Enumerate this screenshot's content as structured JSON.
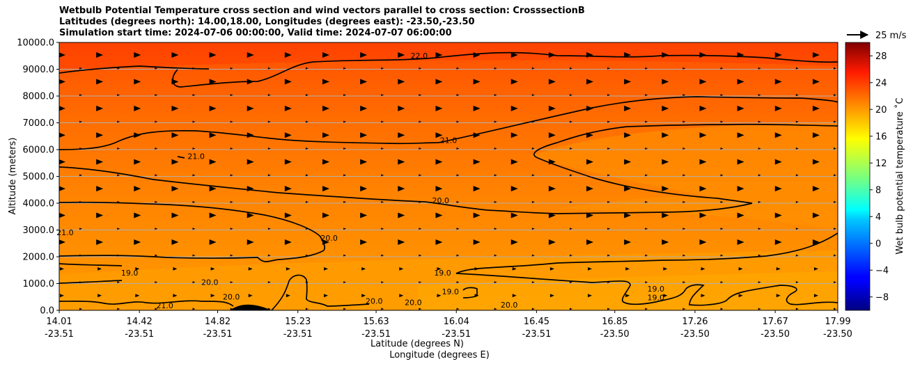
{
  "chart_data": {
    "type": "heatmap",
    "title_lines": [
      "Wetbulb Potential Temperature cross section and wind vectors parallel to cross section: CrosssectionB",
      "Latitudes (degrees north): 14.00,18.00, Longitudes (degrees east): -23.50,-23.50",
      "Simulation start time: 2024-07-06 00:00:00, Valid time: 2024-07-07 06:00:00"
    ],
    "ylabel": "Altitude (meters)",
    "xlabel_lat": "Latitude (degrees N)",
    "xlabel_lon": "Longitude (degrees E)",
    "ylim": [
      0,
      10000
    ],
    "y_ticks": [
      "0.0",
      "1000.0",
      "2000.0",
      "3000.0",
      "4000.0",
      "5000.0",
      "6000.0",
      "7000.0",
      "8000.0",
      "9000.0",
      "10000.0"
    ],
    "y_tick_values": [
      0,
      1000,
      2000,
      3000,
      4000,
      5000,
      6000,
      7000,
      8000,
      9000,
      10000
    ],
    "xlim": [
      14.01,
      17.99
    ],
    "x_ticks": [
      {
        "lat": "14.01",
        "lon": "-23.51",
        "v": 14.01
      },
      {
        "lat": "14.42",
        "lon": "-23.51",
        "v": 14.42
      },
      {
        "lat": "14.82",
        "lon": "-23.51",
        "v": 14.82
      },
      {
        "lat": "15.23",
        "lon": "-23.51",
        "v": 15.23
      },
      {
        "lat": "15.63",
        "lon": "-23.51",
        "v": 15.63
      },
      {
        "lat": "16.04",
        "lon": "-23.51",
        "v": 16.04
      },
      {
        "lat": "16.45",
        "lon": "-23.51",
        "v": 16.45
      },
      {
        "lat": "16.85",
        "lon": "-23.50",
        "v": 16.85
      },
      {
        "lat": "17.26",
        "lon": "-23.50",
        "v": 17.26
      },
      {
        "lat": "17.67",
        "lon": "-23.50",
        "v": 17.67
      },
      {
        "lat": "17.99",
        "lon": "-23.50",
        "v": 17.99
      }
    ],
    "colorbar": {
      "label": "Wet bulb potential temperature $^\\circ$C",
      "label_display": "Wet bulb potential temperature ˚C",
      "range": [
        -10,
        30
      ],
      "ticks": [
        "−8",
        "−4",
        "0",
        "4",
        "8",
        "12",
        "16",
        "20",
        "24",
        "28"
      ],
      "tick_values": [
        -8,
        -4,
        0,
        4,
        8,
        12,
        16,
        20,
        24,
        28
      ],
      "colormap": "jet"
    },
    "quiver_key": "25 m/s",
    "contour_levels": [
      19.0,
      20.0,
      21.0,
      22.0
    ],
    "contour_labels": [
      {
        "text": "22.0",
        "x": 15.85,
        "y": 9400
      },
      {
        "text": "21.0",
        "x": 16.0,
        "y": 6250
      },
      {
        "text": "21.0",
        "x": 14.71,
        "y": 5650
      },
      {
        "text": "20.0",
        "x": 15.96,
        "y": 4000
      },
      {
        "text": "20.0",
        "x": 15.39,
        "y": 2600
      },
      {
        "text": "21.0",
        "x": 14.04,
        "y": 2800
      },
      {
        "text": "19.0",
        "x": 15.97,
        "y": 1300
      },
      {
        "text": "19.0",
        "x": 14.37,
        "y": 1300
      },
      {
        "text": "20.0",
        "x": 14.78,
        "y": 950
      },
      {
        "text": "19.0",
        "x": 16.01,
        "y": 600
      },
      {
        "text": "19.0",
        "x": 17.06,
        "y": 700
      },
      {
        "text": "19.0",
        "x": 17.06,
        "y": 380
      },
      {
        "text": "21.0",
        "x": 14.55,
        "y": 80
      },
      {
        "text": "20.0",
        "x": 14.89,
        "y": 400
      },
      {
        "text": "20.0",
        "x": 15.62,
        "y": 250
      },
      {
        "text": "20.0",
        "x": 15.82,
        "y": 200
      },
      {
        "text": "20.0",
        "x": 16.31,
        "y": 100
      }
    ],
    "temperature_field_description_levels": [
      {
        "y": 9500,
        "t": 23.6
      },
      {
        "y": 8000,
        "t": 22.6
      },
      {
        "y": 6000,
        "t": 21.3
      },
      {
        "y": 4000,
        "t": 20.5
      },
      {
        "y": 2000,
        "t": 20.2
      },
      {
        "y": 500,
        "t": 19.3
      }
    ]
  }
}
